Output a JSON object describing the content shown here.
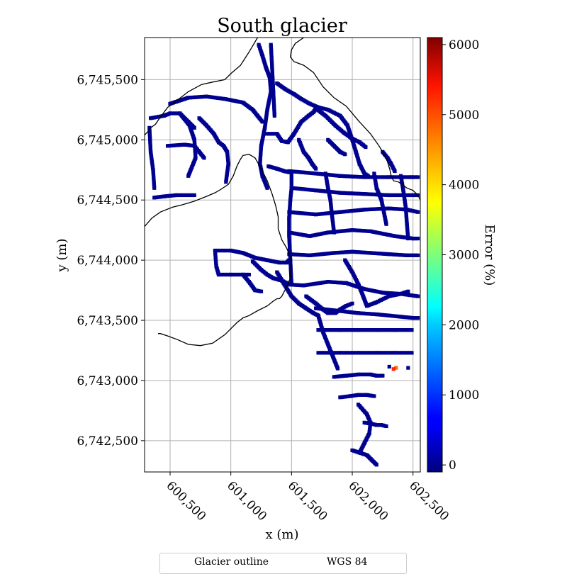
{
  "chart_data": {
    "type": "heatmap",
    "title": "South glacier",
    "xlabel": "x (m)",
    "ylabel": "y (m)",
    "colorbar_label": "Error (%)",
    "colormap": "jet",
    "clim": [
      -100,
      6100
    ],
    "colorbar_ticks": [
      0,
      1000,
      2000,
      3000,
      4000,
      5000,
      6000
    ],
    "colorbar_tick_labels": [
      "0",
      "1000",
      "2000",
      "3000",
      "4000",
      "5000",
      "6000"
    ],
    "xlim": [
      600290,
      602560
    ],
    "ylim": [
      6742240,
      6745850
    ],
    "xticks": [
      600500,
      601000,
      601500,
      602000,
      602500
    ],
    "xtick_labels": [
      "600,500",
      "601,000",
      "601,500",
      "602,000",
      "602,500"
    ],
    "yticks": [
      6742500,
      6743000,
      6743500,
      6744000,
      6744500,
      6745000,
      6745500
    ],
    "ytick_labels": [
      "6,742,500",
      "6,743,000",
      "6,743,500",
      "6,744,000",
      "6,744,500",
      "6,745,000",
      "6,745,500"
    ],
    "grid": true,
    "legend": {
      "placement": "bottom-center",
      "entries": [
        "Glacier outline",
        "WGS 84"
      ]
    },
    "outline_color": "#000000",
    "error_value_dominant": 0,
    "error_cells_traced": [
      {
        "x": [
          601230,
          601260,
          601290,
          601320,
          601330,
          601300,
          601280,
          601250,
          601240,
          601260,
          601300
        ],
        "y": [
          6745790,
          6745700,
          6745600,
          6745520,
          6745400,
          6745250,
          6745100,
          6744950,
          6744800,
          6744700,
          6744600
        ]
      },
      {
        "x": [
          601330,
          601340,
          601350,
          601360
        ],
        "y": [
          6745790,
          6745600,
          6745400,
          6745200
        ]
      },
      {
        "x": [
          600500,
          600650,
          600800,
          600950,
          601100,
          601180,
          601220,
          601260
        ],
        "y": [
          6745300,
          6745350,
          6745360,
          6745340,
          6745310,
          6745250,
          6745200,
          6745150
        ]
      },
      {
        "x": [
          600340,
          600450,
          600500,
          600580,
          600650,
          600700
        ],
        "y": [
          6745180,
          6745200,
          6745220,
          6745220,
          6745150,
          6745100
        ]
      },
      {
        "x": [
          600580,
          600660,
          600700,
          600710,
          600650
        ],
        "y": [
          6745220,
          6745120,
          6745000,
          6744850,
          6744700
        ]
      },
      {
        "x": [
          600740,
          600800,
          600860,
          600900,
          600940,
          600970,
          600980,
          600960
        ],
        "y": [
          6745180,
          6745120,
          6745050,
          6744980,
          6744950,
          6744900,
          6744800,
          6744650
        ]
      },
      {
        "x": [
          600330,
          600340,
          600360,
          600370
        ],
        "y": [
          6745100,
          6744900,
          6744750,
          6744600
        ]
      },
      {
        "x": [
          600480,
          600620,
          600700,
          600740,
          600780
        ],
        "y": [
          6744950,
          6744960,
          6744950,
          6744900,
          6744850
        ]
      },
      {
        "x": [
          600370,
          600450,
          600550,
          600700
        ],
        "y": [
          6744520,
          6744530,
          6744540,
          6744540
        ]
      },
      {
        "x": [
          601380,
          601450,
          601520,
          601580,
          601650,
          601720,
          601800,
          601900,
          601960
        ],
        "y": [
          6745470,
          6745420,
          6745380,
          6745340,
          6745300,
          6745270,
          6745250,
          6745200,
          6745120
        ]
      },
      {
        "x": [
          601300,
          601380,
          601420,
          601470,
          601520,
          601580,
          601640,
          601680,
          601700
        ],
        "y": [
          6745050,
          6745050,
          6744990,
          6744980,
          6745050,
          6745150,
          6745200,
          6745230,
          6745260
        ]
      },
      {
        "x": [
          601700,
          601780,
          601860,
          601930,
          602000,
          602060,
          602110
        ],
        "y": [
          6745260,
          6745200,
          6745120,
          6745060,
          6745010,
          6744980,
          6744940
        ]
      },
      {
        "x": [
          601500,
          601500,
          601490,
          601480,
          601480,
          601490,
          601500
        ],
        "y": [
          6744730,
          6744600,
          6744500,
          6744350,
          6744200,
          6744000,
          6743800
        ]
      },
      {
        "x": [
          601480,
          601700,
          601900,
          602100,
          602300,
          602480,
          602540
        ],
        "y": [
          6744740,
          6744720,
          6744700,
          6744690,
          6744690,
          6744690,
          6744690
        ]
      },
      {
        "x": [
          601500,
          601700,
          601900,
          602100,
          602300,
          602500,
          602540
        ],
        "y": [
          6744600,
          6744580,
          6744560,
          6744550,
          6744540,
          6744540,
          6744540
        ]
      },
      {
        "x": [
          601480,
          601700,
          601900,
          602100,
          602300,
          602450,
          602540
        ],
        "y": [
          6744400,
          6744380,
          6744400,
          6744420,
          6744430,
          6744420,
          6744400
        ]
      },
      {
        "x": [
          601480,
          601650,
          601800,
          602000,
          602150,
          602350,
          602500,
          602540
        ],
        "y": [
          6744230,
          6744200,
          6744230,
          6744250,
          6744240,
          6744200,
          6744180,
          6744180
        ]
      },
      {
        "x": [
          601480,
          601650,
          601850,
          602000,
          602150,
          602300,
          602450,
          602540
        ],
        "y": [
          6744050,
          6744040,
          6744060,
          6744070,
          6744060,
          6744050,
          6744040,
          6744040
        ]
      },
      {
        "x": [
          601440,
          601600,
          601800,
          601950,
          602100,
          602250,
          602400,
          602540
        ],
        "y": [
          6743800,
          6743790,
          6743820,
          6743810,
          6743760,
          6743730,
          6743720,
          6743700
        ]
      },
      {
        "x": [
          601620,
          601700,
          601760,
          601800,
          601860,
          601900,
          601950,
          602000
        ],
        "y": [
          6743700,
          6743640,
          6743590,
          6743560,
          6743560,
          6743590,
          6743620,
          6743640
        ]
      },
      {
        "x": [
          601700,
          601880,
          602050,
          602200,
          602300,
          602400,
          602500,
          602540
        ],
        "y": [
          6743600,
          6743580,
          6743560,
          6743550,
          6743540,
          6743530,
          6743520,
          6743520
        ]
      },
      {
        "x": [
          601720,
          601900,
          602050,
          602200,
          602350,
          602490
        ],
        "y": [
          6743420,
          6743420,
          6743420,
          6743420,
          6743420,
          6743420
        ]
      },
      {
        "x": [
          601720,
          601900,
          602050,
          602200,
          602350,
          602490
        ],
        "y": [
          6743230,
          6743230,
          6743230,
          6743230,
          6743230,
          6743230
        ]
      },
      {
        "x": [
          601850,
          601950,
          602050,
          602150,
          602200,
          602250
        ],
        "y": [
          6743030,
          6743040,
          6743050,
          6743050,
          6743040,
          6743040
        ]
      },
      {
        "x": [
          601900,
          601980,
          602050,
          602120,
          602180
        ],
        "y": [
          6742860,
          6742870,
          6742880,
          6742880,
          6742870
        ]
      },
      {
        "x": [
          602050,
          602120,
          602150,
          602140,
          602100,
          602060
        ],
        "y": [
          6742800,
          6742720,
          6742650,
          6742560,
          6742480,
          6742400
        ]
      },
      {
        "x": [
          602100,
          602160,
          602200,
          602240,
          602280
        ],
        "y": [
          6742650,
          6742640,
          6742630,
          6742630,
          6742620
        ]
      },
      {
        "x": [
          602000,
          602060,
          602120,
          602160,
          602200
        ],
        "y": [
          6742420,
          6742400,
          6742380,
          6742340,
          6742300
        ]
      },
      {
        "x": [
          600880,
          601000,
          601100,
          601200,
          601300,
          601400,
          601460,
          601480
        ],
        "y": [
          6744080,
          6744080,
          6744060,
          6744020,
          6744000,
          6743980,
          6743980,
          6744000
        ]
      },
      {
        "x": [
          600870,
          600880,
          600900,
          601000,
          601100,
          601150
        ],
        "y": [
          6744080,
          6743950,
          6743880,
          6743880,
          6743880,
          6743880
        ]
      },
      {
        "x": [
          601180,
          601250,
          601300,
          601350,
          601420,
          601480
        ],
        "y": [
          6743990,
          6743920,
          6743880,
          6743850,
          6743830,
          6743800
        ]
      },
      {
        "x": [
          601100,
          601150,
          601200,
          601250
        ],
        "y": [
          6743880,
          6743820,
          6743750,
          6743740
        ]
      },
      {
        "x": [
          601380,
          601440,
          601500,
          601560,
          601620,
          601680,
          601720
        ],
        "y": [
          6743900,
          6743800,
          6743700,
          6743640,
          6743600,
          6743560,
          6743540
        ]
      },
      {
        "x": [
          601720,
          601760,
          601800,
          601840,
          601880
        ],
        "y": [
          6743540,
          6743400,
          6743300,
          6743200,
          6743100
        ]
      },
      {
        "x": [
          601940,
          602000,
          602050,
          602090,
          602120,
          602200,
          602300,
          602400,
          602460
        ],
        "y": [
          6744000,
          6743900,
          6743800,
          6743700,
          6743620,
          6743650,
          6743700,
          6743720,
          6743740
        ]
      },
      {
        "x": [
          602180,
          602200,
          602240,
          602260,
          602280
        ],
        "y": [
          6744720,
          6744600,
          6744500,
          6744400,
          6744300
        ]
      },
      {
        "x": [
          601780,
          601800,
          601820,
          601830,
          601850
        ],
        "y": [
          6744720,
          6744600,
          6744500,
          6744400,
          6744230
        ]
      },
      {
        "x": [
          602400,
          602420,
          602440,
          602450,
          602460
        ],
        "y": [
          6744700,
          6744580,
          6744440,
          6744300,
          6744180
        ]
      },
      {
        "x": [
          601960,
          602000,
          602030,
          602060,
          602100,
          602130
        ],
        "y": [
          6745120,
          6745000,
          6744900,
          6744800,
          6744720,
          6744700
        ]
      },
      {
        "x": [
          601800,
          601850,
          601900,
          601940
        ],
        "y": [
          6745000,
          6744950,
          6744900,
          6744880
        ]
      },
      {
        "x": [
          601560,
          601600,
          601640,
          601670,
          601700
        ],
        "y": [
          6745000,
          6744900,
          6744850,
          6744800,
          6744760
        ]
      },
      {
        "x": [
          601310,
          601380,
          601440,
          601480
        ],
        "y": [
          6744780,
          6744760,
          6744740,
          6744730
        ]
      },
      {
        "x": [
          602250,
          602290,
          602320,
          602350
        ],
        "y": [
          6744900,
          6744850,
          6744800,
          6744740
        ]
      }
    ],
    "error_cells_high": [
      {
        "x": 602305,
        "y": 6743115,
        "value": 0
      },
      {
        "x": 602360,
        "y": 6743105,
        "value": 4700
      },
      {
        "x": 602340,
        "y": 6743095,
        "value": 5100
      },
      {
        "x": 602460,
        "y": 6743105,
        "value": 0
      }
    ],
    "outlines": [
      {
        "x": [
          601600,
          601530,
          601500,
          601490,
          601520,
          601600,
          601680,
          601760,
          601850,
          601950,
          602050,
          602150,
          602220,
          602280,
          602310,
          602320,
          602340,
          602380,
          602410,
          602450,
          602500,
          602540,
          602560
        ],
        "y": [
          6745850,
          6745800,
          6745750,
          6745690,
          6745650,
          6745620,
          6745560,
          6745440,
          6745350,
          6745280,
          6745160,
          6745050,
          6744950,
          6744850,
          6744750,
          6744700,
          6744660,
          6744650,
          6744630,
          6744600,
          6744580,
          6744540,
          6744500
        ]
      },
      {
        "x": [
          601220,
          601150,
          601080,
          601000,
          600950,
          600850,
          600760,
          600650,
          600560,
          600480,
          600420,
          600380,
          600340,
          600310,
          600290
        ],
        "y": [
          6745850,
          6745730,
          6745620,
          6745550,
          6745500,
          6745480,
          6745460,
          6745400,
          6745330,
          6745270,
          6745190,
          6745130,
          6745100,
          6745060,
          6745040
        ]
      },
      {
        "x": [
          600290,
          600350,
          600420,
          600520,
          600600,
          600700,
          600800,
          600870,
          600920,
          600980,
          601020,
          601050,
          601080,
          601100,
          601150,
          601200,
          601250,
          601300,
          601340,
          601370,
          601390,
          601390,
          601420,
          601460,
          601500,
          601490,
          601450,
          601420,
          601400,
          601380,
          601350,
          601300,
          601220,
          601150,
          601100,
          601050,
          600950,
          600850,
          600750,
          600650,
          600560,
          600480,
          600420,
          600400
        ],
        "y": [
          6744280,
          6744350,
          6744400,
          6744440,
          6744460,
          6744490,
          6744530,
          6744560,
          6744590,
          6744630,
          6744700,
          6744780,
          6744840,
          6744870,
          6744880,
          6744850,
          6744760,
          6744660,
          6744550,
          6744450,
          6744360,
          6744260,
          6744170,
          6744100,
          6744000,
          6743850,
          6743760,
          6743700,
          6743680,
          6743680,
          6743660,
          6743620,
          6743580,
          6743540,
          6743520,
          6743480,
          6743380,
          6743310,
          6743290,
          6743300,
          6743340,
          6743370,
          6743390,
          6743390
        ]
      }
    ]
  },
  "legend_labels": {
    "outline": "Glacier outline",
    "crs": "WGS 84"
  }
}
